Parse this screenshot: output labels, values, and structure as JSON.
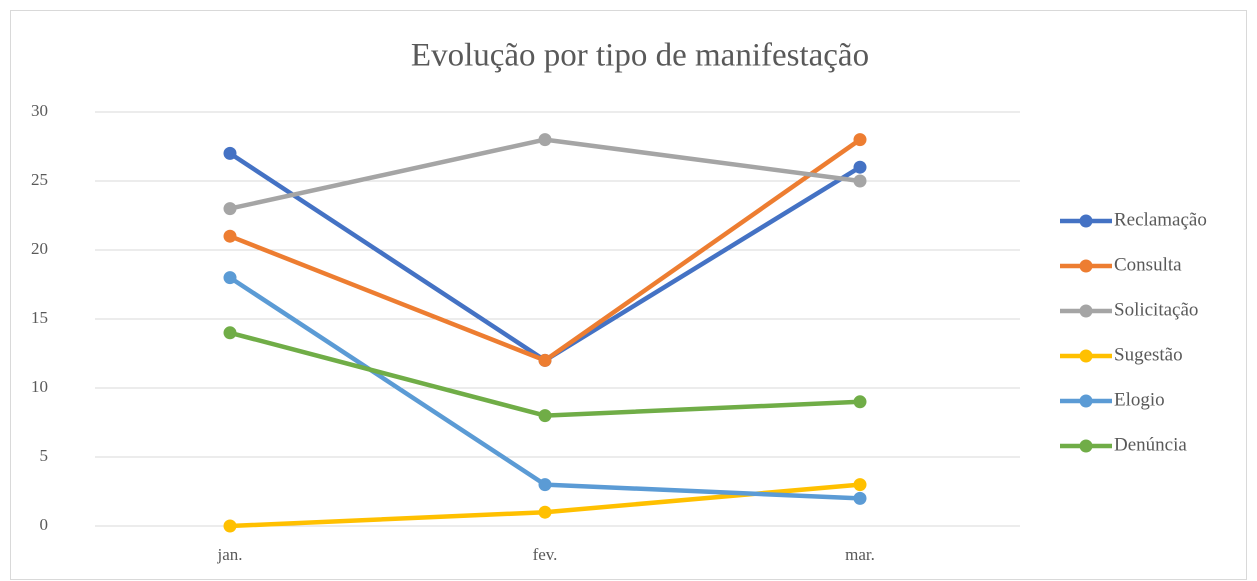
{
  "chart_data": {
    "type": "line",
    "title": "Evolução por tipo de manifestação",
    "categories": [
      "jan.",
      "fev.",
      "mar."
    ],
    "series": [
      {
        "name": "Reclamação",
        "color": "#4472c4",
        "values": [
          27,
          12,
          26
        ]
      },
      {
        "name": "Consulta",
        "color": "#ed7d31",
        "values": [
          21,
          12,
          28
        ]
      },
      {
        "name": "Solicitação",
        "color": "#a5a5a5",
        "values": [
          23,
          28,
          25
        ]
      },
      {
        "name": "Sugestão",
        "color": "#ffc000",
        "values": [
          0,
          1,
          3
        ]
      },
      {
        "name": "Elogio",
        "color": "#5b9bd5",
        "values": [
          18,
          3,
          2
        ]
      },
      {
        "name": "Denúncia",
        "color": "#70ad47",
        "values": [
          14,
          8,
          9
        ]
      }
    ],
    "ylim": [
      0,
      30
    ],
    "yticks": [
      0,
      5,
      10,
      15,
      20,
      25,
      30
    ],
    "grid": true,
    "legend": "right"
  }
}
